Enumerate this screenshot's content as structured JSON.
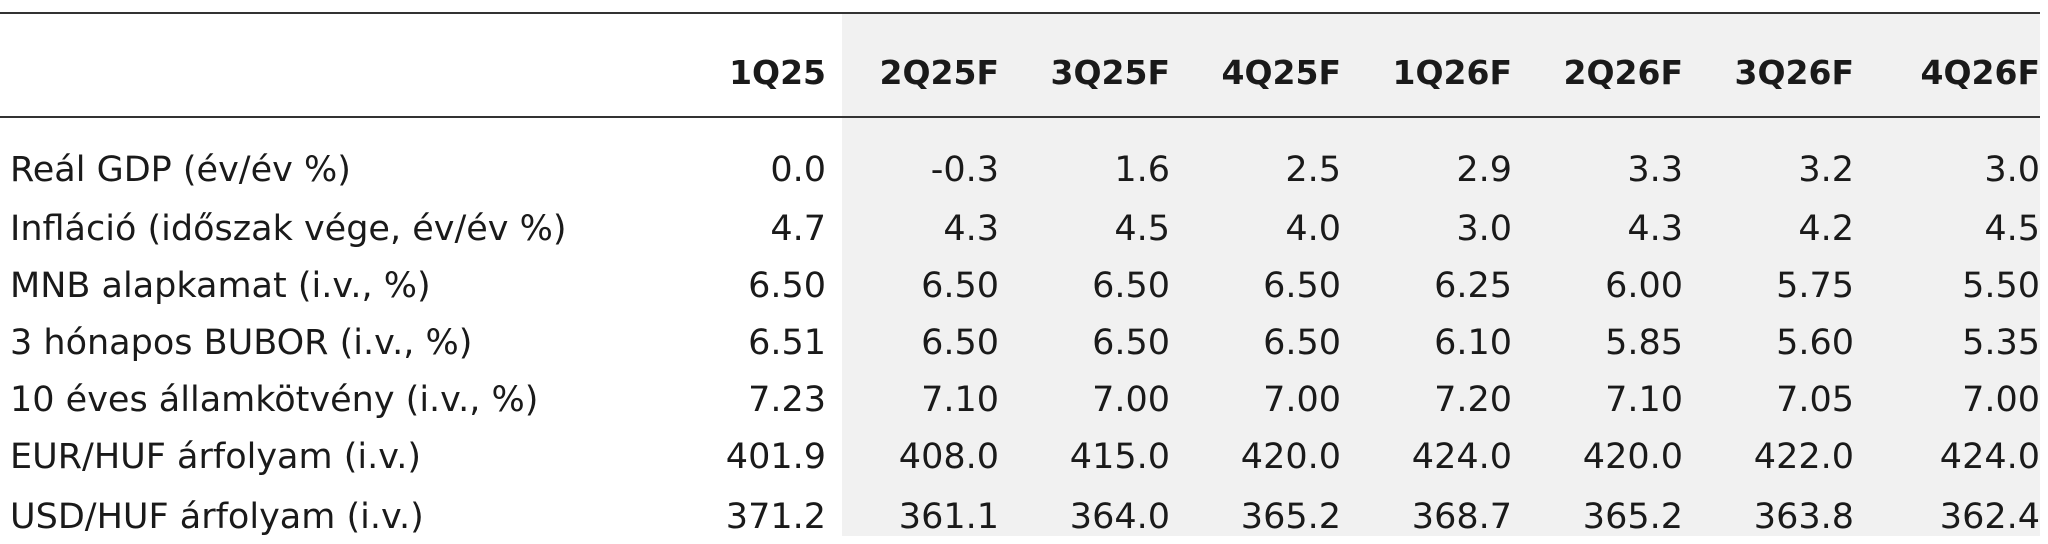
{
  "table": {
    "columns": [
      "1Q25",
      "2Q25F",
      "3Q25F",
      "4Q25F",
      "1Q26F",
      "2Q26F",
      "3Q26F",
      "4Q26F"
    ],
    "rows": [
      {
        "label": "Reál GDP (év/év %)",
        "values": [
          "0.0",
          "-0.3",
          "1.6",
          "2.5",
          "2.9",
          "3.3",
          "3.2",
          "3.0"
        ]
      },
      {
        "label": "Infláció (időszak vége, év/év %)",
        "values": [
          "4.7",
          "4.3",
          "4.5",
          "4.0",
          "3.0",
          "4.3",
          "4.2",
          "4.5"
        ]
      },
      {
        "label": "MNB alapkamat (i.v., %)",
        "values": [
          "6.50",
          "6.50",
          "6.50",
          "6.50",
          "6.25",
          "6.00",
          "5.75",
          "5.50"
        ]
      },
      {
        "label": "3 hónapos BUBOR (i.v., %)",
        "values": [
          "6.51",
          "6.50",
          "6.50",
          "6.50",
          "6.10",
          "5.85",
          "5.60",
          "5.35"
        ]
      },
      {
        "label": "10 éves államkötvény (i.v., %)",
        "values": [
          "7.23",
          "7.10",
          "7.00",
          "7.00",
          "7.20",
          "7.10",
          "7.05",
          "7.00"
        ]
      },
      {
        "label": "EUR/HUF árfolyam (i.v.)",
        "values": [
          "401.9",
          "408.0",
          "415.0",
          "420.0",
          "424.0",
          "420.0",
          "422.0",
          "424.0"
        ]
      },
      {
        "label": "USD/HUF árfolyam (i.v.)",
        "values": [
          "371.2",
          "361.1",
          "364.0",
          "365.2",
          "368.7",
          "365.2",
          "363.8",
          "362.4"
        ]
      }
    ]
  },
  "colors": {
    "forecast_shading": "#f1f1f1",
    "rule": "#333333",
    "text": "#1a1a1a"
  }
}
